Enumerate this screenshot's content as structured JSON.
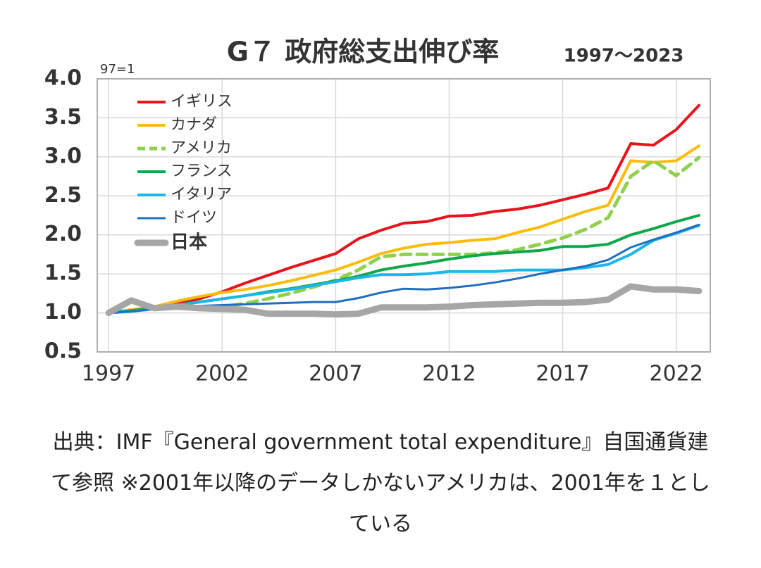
{
  "chart_data": {
    "type": "line",
    "title": "G７ 政府総支出伸び率",
    "subtitle": "1997～2023",
    "y_unit_note": "97=1",
    "caption": "出典：IMF『General government total expenditure』自国通貨建て参照 ※2001年以降のデータしかないアメリカは、2001年を１としている",
    "x": [
      1997,
      1998,
      1999,
      2000,
      2001,
      2002,
      2003,
      2004,
      2005,
      2006,
      2007,
      2008,
      2009,
      2010,
      2011,
      2012,
      2013,
      2014,
      2015,
      2016,
      2017,
      2018,
      2019,
      2020,
      2021,
      2022,
      2023
    ],
    "xlim": [
      1996.5,
      2023.5
    ],
    "xticks": [
      1997,
      2002,
      2007,
      2012,
      2017,
      2022
    ],
    "ylim": [
      0.5,
      4.0
    ],
    "yticks": [
      0.5,
      {
        "value": 1,
        "label": "1.0"
      },
      1.5,
      {
        "value": 2,
        "label": "2.0"
      },
      2.5,
      {
        "value": 3,
        "label": "3.0"
      },
      3.5,
      {
        "value": 4,
        "label": "4.0"
      }
    ],
    "grid": true,
    "legend": "upper left",
    "series": [
      {
        "name": "イギリス",
        "color": "#e8141c",
        "width": 4,
        "values": [
          1.0,
          1.04,
          1.07,
          1.12,
          1.18,
          1.27,
          1.38,
          1.48,
          1.58,
          1.67,
          1.76,
          1.95,
          2.06,
          2.15,
          2.17,
          2.24,
          2.25,
          2.3,
          2.33,
          2.38,
          2.45,
          2.52,
          2.6,
          3.17,
          3.15,
          3.35,
          3.66
        ]
      },
      {
        "name": "カナダ",
        "color": "#fbbd0a",
        "width": 4,
        "values": [
          1.0,
          1.04,
          1.08,
          1.15,
          1.21,
          1.26,
          1.3,
          1.35,
          1.41,
          1.48,
          1.55,
          1.65,
          1.76,
          1.83,
          1.88,
          1.9,
          1.93,
          1.95,
          2.03,
          2.1,
          2.2,
          2.3,
          2.38,
          2.95,
          2.93,
          2.95,
          3.14
        ]
      },
      {
        "name": "アメリカ",
        "color": "#8fd14f",
        "width": 5,
        "dashed": true,
        "values": [
          null,
          null,
          null,
          null,
          1.05,
          1.08,
          1.12,
          1.18,
          1.25,
          1.33,
          1.42,
          1.55,
          1.72,
          1.75,
          1.75,
          1.75,
          1.75,
          1.77,
          1.81,
          1.88,
          1.96,
          2.07,
          2.22,
          2.75,
          2.95,
          2.76,
          2.99
        ]
      },
      {
        "name": "フランス",
        "color": "#0ea84b",
        "width": 4,
        "values": [
          1.0,
          1.03,
          1.06,
          1.1,
          1.14,
          1.18,
          1.22,
          1.27,
          1.31,
          1.36,
          1.41,
          1.47,
          1.55,
          1.6,
          1.64,
          1.69,
          1.73,
          1.76,
          1.78,
          1.8,
          1.85,
          1.85,
          1.88,
          2.0,
          2.08,
          2.17,
          2.25
        ]
      },
      {
        "name": "イタリア",
        "color": "#1ab7ea",
        "width": 4,
        "values": [
          1.0,
          1.02,
          1.05,
          1.1,
          1.14,
          1.18,
          1.22,
          1.26,
          1.3,
          1.35,
          1.4,
          1.45,
          1.49,
          1.49,
          1.5,
          1.53,
          1.53,
          1.53,
          1.55,
          1.55,
          1.55,
          1.58,
          1.62,
          1.75,
          1.93,
          2.02,
          2.12
        ]
      },
      {
        "name": "ドイツ",
        "color": "#1f6fbf",
        "width": 3,
        "values": [
          1.0,
          1.02,
          1.05,
          1.08,
          1.09,
          1.1,
          1.11,
          1.12,
          1.13,
          1.14,
          1.14,
          1.19,
          1.26,
          1.31,
          1.3,
          1.32,
          1.35,
          1.39,
          1.44,
          1.5,
          1.55,
          1.6,
          1.68,
          1.84,
          1.94,
          2.03,
          2.13
        ]
      },
      {
        "name": "日本",
        "color": "#a6a6a6",
        "width": 9,
        "bold": true,
        "values": [
          1.0,
          1.16,
          1.06,
          1.08,
          1.06,
          1.05,
          1.04,
          0.99,
          0.99,
          0.99,
          0.98,
          0.99,
          1.07,
          1.07,
          1.07,
          1.08,
          1.1,
          1.11,
          1.12,
          1.13,
          1.13,
          1.14,
          1.17,
          1.34,
          1.3,
          1.3,
          1.28
        ]
      }
    ]
  }
}
